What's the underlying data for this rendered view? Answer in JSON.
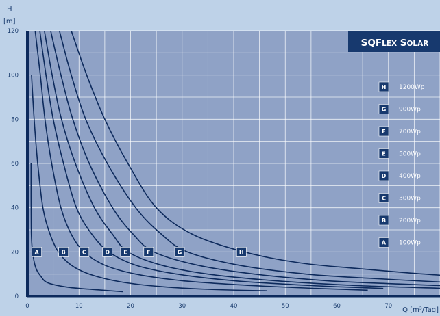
{
  "chart_data": {
    "type": "line",
    "title": "SQFlex Solar",
    "ylabel": "H",
    "ylabel_unit": "[m]",
    "xlabel": "Q [m³/Tag]",
    "xlim": [
      0,
      80
    ],
    "ylim": [
      0,
      120
    ],
    "x_ticks": [
      0,
      10,
      20,
      30,
      40,
      50,
      60,
      70
    ],
    "y_ticks": [
      0,
      20,
      40,
      60,
      80,
      100,
      120
    ],
    "grid": true,
    "legend_position": "right",
    "colors": {
      "background": "#bed2e8",
      "plot_area": "#8fa2c6",
      "curve": "#0d2a5c",
      "badge": "#17396e",
      "text": "#1a3c6e"
    },
    "series": [
      {
        "key": "A",
        "name": "100Wp",
        "label_at": [
          1.8,
          20
        ],
        "points": [
          [
            0.7,
            60
          ],
          [
            0.75,
            30
          ],
          [
            1,
            20
          ],
          [
            1.6,
            13
          ],
          [
            2.6,
            9
          ],
          [
            4,
            6
          ],
          [
            8,
            4
          ],
          [
            14,
            2.8
          ],
          [
            18.5,
            2
          ]
        ]
      },
      {
        "key": "B",
        "name": "200Wp",
        "label_at": [
          7,
          20
        ],
        "points": [
          [
            0.8,
            100
          ],
          [
            1.3,
            80
          ],
          [
            2,
            60
          ],
          [
            3,
            40
          ],
          [
            4.4,
            28
          ],
          [
            6,
            20
          ],
          [
            8.5,
            14
          ],
          [
            12,
            10
          ],
          [
            18,
            6.5
          ],
          [
            26,
            4.3
          ],
          [
            35,
            3.1
          ],
          [
            46.5,
            2.4
          ]
        ]
      },
      {
        "key": "C",
        "name": "300Wp",
        "label_at": [
          11,
          20
        ],
        "points": [
          [
            1.5,
            120
          ],
          [
            2.5,
            100
          ],
          [
            3.4,
            80
          ],
          [
            4.7,
            60
          ],
          [
            6.5,
            40
          ],
          [
            8.5,
            28
          ],
          [
            11,
            20
          ],
          [
            15,
            14
          ],
          [
            21,
            10
          ],
          [
            30,
            7
          ],
          [
            42,
            5
          ],
          [
            56,
            3.5
          ],
          [
            66,
            2.7
          ]
        ]
      },
      {
        "key": "D",
        "name": "400Wp",
        "label_at": [
          15.5,
          20
        ],
        "points": [
          [
            2.4,
            120
          ],
          [
            3.6,
            100
          ],
          [
            5,
            80
          ],
          [
            7,
            60
          ],
          [
            9.5,
            40
          ],
          [
            12.5,
            28
          ],
          [
            15.8,
            20
          ],
          [
            21,
            14
          ],
          [
            29,
            10
          ],
          [
            40,
            7
          ],
          [
            55,
            4.8
          ],
          [
            69,
            3.5
          ]
        ]
      },
      {
        "key": "E",
        "name": "500Wp",
        "label_at": [
          19,
          20
        ],
        "points": [
          [
            3.3,
            120
          ],
          [
            4.8,
            100
          ],
          [
            6.6,
            80
          ],
          [
            9.3,
            60
          ],
          [
            13,
            40
          ],
          [
            16.5,
            28
          ],
          [
            19.5,
            20
          ],
          [
            26,
            14
          ],
          [
            35,
            10
          ],
          [
            48,
            7
          ],
          [
            64,
            4.8
          ],
          [
            80,
            3.6
          ]
        ]
      },
      {
        "key": "F",
        "name": "700Wp",
        "label_at": [
          23.5,
          20
        ],
        "points": [
          [
            4.5,
            120
          ],
          [
            6.5,
            100
          ],
          [
            8.8,
            80
          ],
          [
            12,
            60
          ],
          [
            16.5,
            40
          ],
          [
            20.5,
            28
          ],
          [
            24.5,
            20
          ],
          [
            33,
            14
          ],
          [
            44,
            10
          ],
          [
            58,
            7
          ],
          [
            72,
            5.5
          ],
          [
            80,
            4.8
          ]
        ]
      },
      {
        "key": "G",
        "name": "900Wp",
        "label_at": [
          29.5,
          20
        ],
        "points": [
          [
            6.2,
            120
          ],
          [
            8.5,
            100
          ],
          [
            11.3,
            80
          ],
          [
            15.5,
            60
          ],
          [
            21,
            40
          ],
          [
            26,
            28
          ],
          [
            31,
            20
          ],
          [
            41,
            14
          ],
          [
            54,
            10
          ],
          [
            67,
            8
          ],
          [
            80,
            6.4
          ]
        ]
      },
      {
        "key": "H",
        "name": "1200Wp",
        "label_at": [
          41.5,
          20
        ],
        "points": [
          [
            8.5,
            120
          ],
          [
            11.5,
            100
          ],
          [
            15,
            80
          ],
          [
            19.5,
            60
          ],
          [
            25,
            40
          ],
          [
            32,
            28
          ],
          [
            42,
            20
          ],
          [
            53,
            15
          ],
          [
            64,
            12.5
          ],
          [
            74,
            10.5
          ],
          [
            80,
            9.5
          ]
        ]
      }
    ]
  }
}
